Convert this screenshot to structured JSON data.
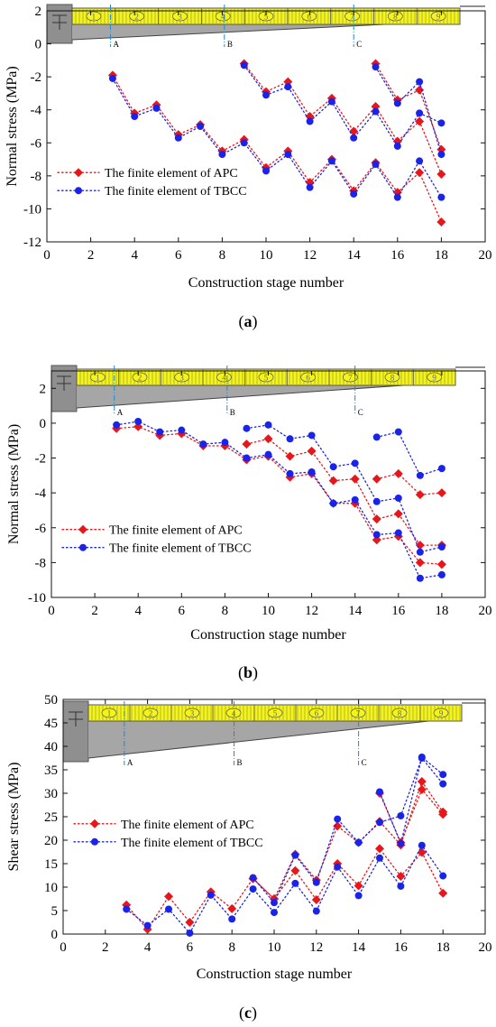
{
  "chart_data": [
    {
      "type": "line",
      "panel_label": "(a)",
      "bold_letter": "a",
      "xlabel": "Construction stage number",
      "ylabel": "Normal stress (MPa)",
      "xlim": [
        0,
        20
      ],
      "ylim": [
        -12,
        2
      ],
      "xticks": [
        0,
        2,
        4,
        6,
        8,
        10,
        12,
        14,
        16,
        18,
        20
      ],
      "yticks": [
        -12,
        -10,
        -8,
        -6,
        -4,
        -2,
        0,
        2
      ],
      "section_markers": [
        {
          "label": "A",
          "x": 2.9
        },
        {
          "label": "B",
          "x": 8.1
        },
        {
          "label": "C",
          "x": 14
        }
      ],
      "segment_labels": [
        "1",
        "2",
        "3",
        "4",
        "5",
        "6",
        "7",
        "8",
        "9"
      ],
      "legend_position": "middle-left",
      "series": [
        {
          "name": "The finite element of APC",
          "color": "#e8161a",
          "marker": "diamond",
          "lines": [
            {
              "x": [
                3,
                4,
                5,
                6,
                7,
                8,
                9,
                10,
                11,
                12,
                13,
                14,
                15,
                16,
                17,
                18
              ],
              "y": [
                -1.9,
                -4.2,
                -3.7,
                -5.5,
                -4.9,
                -6.5,
                -5.8,
                -7.5,
                -6.5,
                -8.4,
                -7.0,
                -8.9,
                -7.2,
                -9.0,
                -7.8,
                -10.8
              ]
            },
            {
              "x": [
                9,
                10,
                11,
                12,
                13,
                14,
                15,
                16,
                17,
                18
              ],
              "y": [
                -1.2,
                -2.9,
                -2.3,
                -4.4,
                -3.3,
                -5.3,
                -3.8,
                -5.9,
                -4.7,
                -7.9
              ]
            },
            {
              "x": [
                15,
                16,
                17,
                18
              ],
              "y": [
                -1.2,
                -3.4,
                -2.8,
                -6.4
              ]
            }
          ]
        },
        {
          "name": "The finite element of TBCC",
          "color": "#1a23e8",
          "marker": "circle",
          "lines": [
            {
              "x": [
                3,
                4,
                5,
                6,
                7,
                8,
                9,
                10,
                11,
                12,
                13,
                14,
                15,
                16,
                17,
                18
              ],
              "y": [
                -2.1,
                -4.4,
                -3.9,
                -5.7,
                -5.0,
                -6.7,
                -6.0,
                -7.7,
                -6.7,
                -8.7,
                -7.1,
                -9.1,
                -7.3,
                -9.3,
                -7.1,
                -9.3
              ]
            },
            {
              "x": [
                9,
                10,
                11,
                12,
                13,
                14,
                15,
                16,
                17,
                18
              ],
              "y": [
                -1.3,
                -3.1,
                -2.6,
                -4.7,
                -3.5,
                -5.7,
                -4.1,
                -6.2,
                -4.2,
                -4.8
              ]
            },
            {
              "x": [
                15,
                16,
                17,
                18
              ],
              "y": [
                -1.4,
                -3.6,
                -2.3,
                -6.7
              ]
            }
          ]
        }
      ]
    },
    {
      "type": "line",
      "panel_label": "(b)",
      "bold_letter": "b",
      "xlabel": "Construction stage number",
      "ylabel": "Normal stress (MPa)",
      "xlim": [
        0,
        20
      ],
      "ylim": [
        -10,
        3
      ],
      "xticks": [
        0,
        2,
        4,
        6,
        8,
        10,
        12,
        14,
        16,
        18,
        20
      ],
      "yticks": [
        -10,
        -8,
        -6,
        -4,
        -2,
        0,
        2
      ],
      "section_markers": [
        {
          "label": "A",
          "x": 2.9
        },
        {
          "label": "B",
          "x": 8.1
        },
        {
          "label": "C",
          "x": 14
        }
      ],
      "segment_labels": [
        "1",
        "2",
        "3",
        "4",
        "5",
        "6",
        "7",
        "8",
        "9"
      ],
      "legend_position": "middle-left",
      "series": [
        {
          "name": "The finite element of APC",
          "color": "#e8161a",
          "marker": "diamond",
          "lines": [
            {
              "x": [
                3,
                4,
                5,
                6,
                7,
                8,
                9,
                10,
                11,
                12,
                13,
                14,
                15,
                16,
                17,
                18
              ],
              "y": [
                -0.3,
                -0.2,
                -0.7,
                -0.6,
                -1.3,
                -1.3,
                -2.1,
                -1.9,
                -3.1,
                -2.9,
                -4.6,
                -4.6,
                -6.7,
                -6.5,
                -8.0,
                -8.1
              ]
            },
            {
              "x": [
                9,
                10,
                11,
                12,
                13,
                14,
                15,
                16,
                17,
                18
              ],
              "y": [
                -1.2,
                -0.9,
                -1.9,
                -1.6,
                -3.3,
                -3.2,
                -5.5,
                -5.2,
                -7.0,
                -7.0
              ]
            },
            {
              "x": [
                15,
                16,
                17,
                18
              ],
              "y": [
                -3.2,
                -2.9,
                -4.1,
                -4.0
              ]
            }
          ]
        },
        {
          "name": "The finite element of TBCC",
          "color": "#1a23e8",
          "marker": "circle",
          "lines": [
            {
              "x": [
                3,
                4,
                5,
                6,
                7,
                8,
                9,
                10,
                11,
                12,
                13,
                14,
                15,
                16,
                17,
                18
              ],
              "y": [
                -0.1,
                0.1,
                -0.5,
                -0.4,
                -1.2,
                -1.1,
                -2.0,
                -1.8,
                -2.9,
                -2.8,
                -4.6,
                -4.4,
                -6.4,
                -6.3,
                -8.9,
                -8.7
              ]
            },
            {
              "x": [
                9,
                10,
                11,
                12,
                13,
                14,
                15,
                16,
                17,
                18
              ],
              "y": [
                -0.3,
                -0.1,
                -0.9,
                -0.7,
                -2.5,
                -2.3,
                -4.5,
                -4.3,
                -7.4,
                -7.1
              ]
            },
            {
              "x": [
                15,
                16,
                17,
                18
              ],
              "y": [
                -0.8,
                -0.5,
                -3.0,
                -2.6
              ]
            }
          ]
        }
      ]
    },
    {
      "type": "line",
      "panel_label": "(c)",
      "bold_letter": "c",
      "xlabel": "Construction stage number",
      "ylabel": "Shear stress (MPa)",
      "xlim": [
        0,
        20
      ],
      "ylim": [
        0,
        50
      ],
      "xticks": [
        0,
        2,
        4,
        6,
        8,
        10,
        12,
        14,
        16,
        18,
        20
      ],
      "yticks": [
        0,
        5,
        10,
        15,
        20,
        25,
        30,
        35,
        40,
        45,
        50
      ],
      "section_markers": [
        {
          "label": "A",
          "x": 2.9
        },
        {
          "label": "B",
          "x": 8.1
        },
        {
          "label": "C",
          "x": 14
        }
      ],
      "segment_labels": [
        "1",
        "2",
        "3",
        "4",
        "5",
        "6",
        "7",
        "8",
        "9"
      ],
      "legend_position": "middle-left",
      "series": [
        {
          "name": "The finite element of APC",
          "color": "#e8161a",
          "marker": "diamond",
          "lines": [
            {
              "x": [
                3,
                4,
                5,
                6,
                7,
                8,
                9,
                10,
                11,
                12,
                13,
                14,
                15,
                16,
                17,
                18
              ],
              "y": [
                6.2,
                1.0,
                8.0,
                2.5,
                9.0,
                5.4,
                11.8,
                7.5,
                13.5,
                7.3,
                15.0,
                10.3,
                18.2,
                12.3,
                17.4,
                8.7
              ]
            },
            {
              "x": [
                9,
                10,
                11,
                12,
                13,
                14,
                15,
                16,
                17,
                18
              ],
              "y": [
                11.8,
                7.5,
                17.0,
                11.5,
                23.0,
                19.5,
                24.0,
                19.0,
                32.5,
                26.0
              ]
            },
            {
              "x": [
                15,
                16,
                17,
                18
              ],
              "y": [
                30.0,
                19.5,
                30.8,
                25.5
              ]
            }
          ]
        },
        {
          "name": "The finite element of TBCC",
          "color": "#1a23e8",
          "marker": "circle",
          "lines": [
            {
              "x": [
                3,
                4,
                5,
                6,
                7,
                8,
                9,
                10,
                11,
                12,
                13,
                14,
                15,
                16,
                17,
                18
              ],
              "y": [
                5.3,
                1.8,
                5.3,
                0.2,
                8.3,
                3.2,
                9.6,
                4.6,
                10.8,
                4.9,
                14.3,
                8.2,
                16.2,
                10.2,
                18.9,
                12.4
              ]
            },
            {
              "x": [
                9,
                10,
                11,
                12,
                13,
                14,
                15,
                16,
                17,
                18
              ],
              "y": [
                12.0,
                6.7,
                16.8,
                11.0,
                24.5,
                19.5,
                23.8,
                25.2,
                37.5,
                32.0
              ]
            },
            {
              "x": [
                15,
                16,
                17,
                18
              ],
              "y": [
                30.3,
                19.3,
                37.7,
                34.0
              ]
            }
          ]
        }
      ]
    }
  ]
}
